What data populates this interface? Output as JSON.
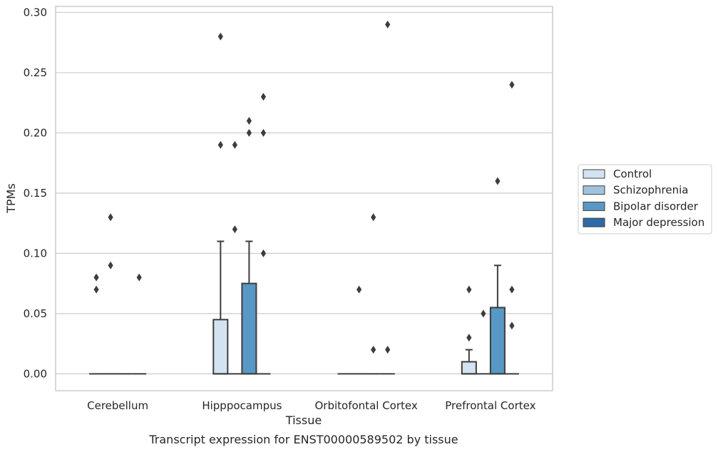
{
  "chart_data": {
    "type": "box",
    "xlabel": "Tissue",
    "ylabel": "TPMs",
    "caption": "Transcript expression for ENST00000589502 by tissue",
    "ylim": [
      -0.014,
      0.305
    ],
    "yticks": [
      "0.00",
      "0.05",
      "0.10",
      "0.15",
      "0.20",
      "0.25",
      "0.30"
    ],
    "ytick_values": [
      0,
      0.05,
      0.1,
      0.15,
      0.2,
      0.25,
      0.3
    ],
    "grid": "horizontal",
    "legend_position": "right",
    "categories": [
      "Cerebellum",
      "Hipppocampus",
      "Orbitofontal Cortex",
      "Prefrontal Cortex"
    ],
    "series": [
      {
        "name": "Control",
        "color": "#d4e3f1",
        "boxes": [
          {
            "q1": 0,
            "median": 0,
            "q3": 0,
            "whisker_low": 0,
            "whisker_high": 0,
            "outliers": [
              0.07,
              0.08
            ]
          },
          {
            "q1": 0,
            "median": 0,
            "q3": 0.045,
            "whisker_low": 0,
            "whisker_high": 0.11,
            "outliers": [
              0.19,
              0.28
            ]
          },
          {
            "q1": 0,
            "median": 0,
            "q3": 0,
            "whisker_low": 0,
            "whisker_high": 0,
            "outliers": []
          },
          {
            "q1": 0,
            "median": 0,
            "q3": 0.01,
            "whisker_low": 0,
            "whisker_high": 0.02,
            "outliers": [
              0.03,
              0.07
            ]
          }
        ]
      },
      {
        "name": "Schizophrenia",
        "color": "#a0c3dd",
        "boxes": [
          {
            "q1": 0,
            "median": 0,
            "q3": 0,
            "whisker_low": 0,
            "whisker_high": 0,
            "outliers": [
              0.09,
              0.13
            ]
          },
          {
            "q1": 0,
            "median": 0,
            "q3": 0,
            "whisker_low": 0,
            "whisker_high": 0,
            "outliers": [
              0.12,
              0.19
            ]
          },
          {
            "q1": 0,
            "median": 0,
            "q3": 0,
            "whisker_low": 0,
            "whisker_high": 0,
            "outliers": [
              0.07
            ]
          },
          {
            "q1": 0,
            "median": 0,
            "q3": 0,
            "whisker_low": 0,
            "whisker_high": 0,
            "outliers": [
              0.05
            ]
          }
        ]
      },
      {
        "name": "Bipolar disorder",
        "color": "#5898c4",
        "boxes": [
          {
            "q1": 0,
            "median": 0,
            "q3": 0,
            "whisker_low": 0,
            "whisker_high": 0,
            "outliers": []
          },
          {
            "q1": 0,
            "median": 0,
            "q3": 0.075,
            "whisker_low": 0,
            "whisker_high": 0.11,
            "outliers": [
              0.2,
              0.21
            ]
          },
          {
            "q1": 0,
            "median": 0,
            "q3": 0,
            "whisker_low": 0,
            "whisker_high": 0,
            "outliers": [
              0.02,
              0.13
            ]
          },
          {
            "q1": 0,
            "median": 0,
            "q3": 0.055,
            "whisker_low": 0,
            "whisker_high": 0.09,
            "outliers": [
              0.16
            ]
          }
        ]
      },
      {
        "name": "Major depression",
        "color": "#2c6aa7",
        "boxes": [
          {
            "q1": 0,
            "median": 0,
            "q3": 0,
            "whisker_low": 0,
            "whisker_high": 0,
            "outliers": [
              0.08
            ]
          },
          {
            "q1": 0,
            "median": 0,
            "q3": 0,
            "whisker_low": 0,
            "whisker_high": 0,
            "outliers": [
              0.1,
              0.2,
              0.23
            ]
          },
          {
            "q1": 0,
            "median": 0,
            "q3": 0,
            "whisker_low": 0,
            "whisker_high": 0,
            "outliers": [
              0.02,
              0.29
            ]
          },
          {
            "q1": 0,
            "median": 0,
            "q3": 0,
            "whisker_low": 0,
            "whisker_high": 0,
            "outliers": [
              0.04,
              0.07,
              0.24
            ]
          }
        ]
      }
    ]
  }
}
